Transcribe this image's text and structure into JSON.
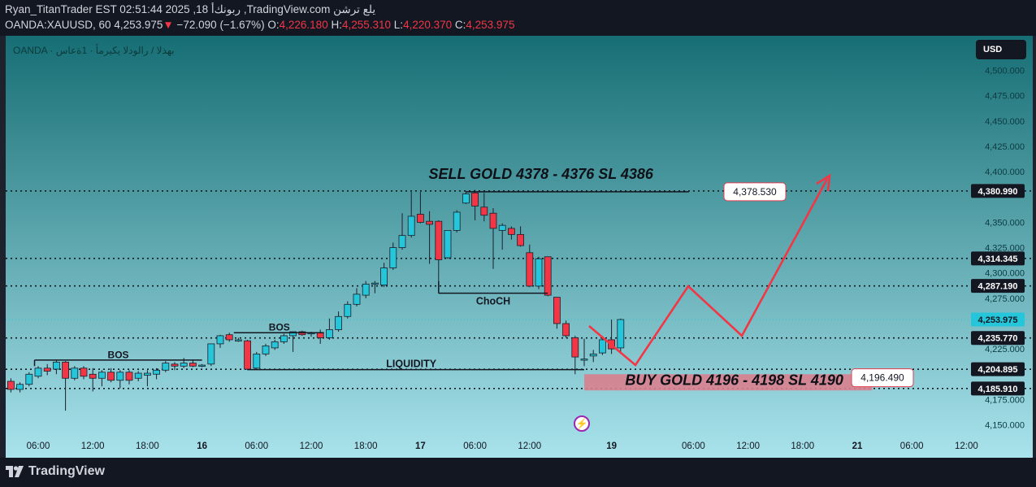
{
  "header": {
    "line1": "Ryan_TitanTrader EST 02:51:44 2025 ,18 ربونك‌أ ,TradingView.com يلع ترشن",
    "symbol": "OANDA:XAUUSD, 60",
    "last": "4,253.975",
    "change_arrow": "▼",
    "change": "−72.090 (−1.67%)",
    "o_label": "O:",
    "o_value": "4,226.180",
    "h_label": "H:",
    "h_value": "4,255.310",
    "l_label": "L:",
    "l_value": "4,220.370",
    "c_label": "C:",
    "c_value": "4,253.975"
  },
  "chart": {
    "symbol_desc": "OANDA · بهذلا / رالودلا يكيرمأ · 1ةعاس",
    "currency_button": "USD",
    "colors": {
      "bg_top": "#166e74",
      "bg_bottom": "#a9e3ec",
      "up": "#26c6da",
      "down": "#f23645",
      "zone": "#d9808e",
      "path": "#f23645"
    },
    "price_axis": [
      {
        "p": 4500,
        "label": "4,500.000"
      },
      {
        "p": 4475,
        "label": "4,475.000"
      },
      {
        "p": 4450,
        "label": "4,450.000"
      },
      {
        "p": 4425,
        "label": "4,425.000"
      },
      {
        "p": 4400,
        "label": "4,400.000"
      },
      {
        "p": 4350,
        "label": "4,350.000"
      },
      {
        "p": 4325,
        "label": "4,325.000"
      },
      {
        "p": 4300,
        "label": "4,300.000"
      },
      {
        "p": 4275,
        "label": "4,275.000"
      },
      {
        "p": 4225,
        "label": "4,225.000"
      },
      {
        "p": 4175,
        "label": "4,175.000"
      },
      {
        "p": 4150,
        "label": "4,150.000"
      }
    ],
    "price_badges": [
      {
        "p": 4380.99,
        "label": "4,380.990",
        "style": "dark"
      },
      {
        "p": 4314.345,
        "label": "4,314.345",
        "style": "dark"
      },
      {
        "p": 4287.19,
        "label": "4,287.190",
        "style": "dark"
      },
      {
        "p": 4253.975,
        "label": "4,253.975",
        "style": "last"
      },
      {
        "p": 4235.77,
        "label": "4,235.770",
        "style": "dark"
      },
      {
        "p": 4204.895,
        "label": "4,204.895",
        "style": "dark"
      },
      {
        "p": 4185.91,
        "label": "4,185.910",
        "style": "dark"
      }
    ],
    "time_axis": [
      {
        "t": 6,
        "label": "06:00"
      },
      {
        "t": 12,
        "label": "12:00"
      },
      {
        "t": 18,
        "label": "18:00"
      },
      {
        "t": 24,
        "label": "16"
      },
      {
        "t": 30,
        "label": "06:00"
      },
      {
        "t": 36,
        "label": "12:00"
      },
      {
        "t": 42,
        "label": "18:00"
      },
      {
        "t": 48,
        "label": "17"
      },
      {
        "t": 54,
        "label": "06:00"
      },
      {
        "t": 60,
        "label": "12:00"
      },
      {
        "t": 69,
        "label": "19"
      },
      {
        "t": 78,
        "label": "06:00"
      },
      {
        "t": 84,
        "label": "12:00"
      },
      {
        "t": 90,
        "label": "18:00"
      },
      {
        "t": 96,
        "label": "21"
      },
      {
        "t": 102,
        "label": "06:00"
      },
      {
        "t": 108,
        "label": "12:00"
      }
    ],
    "candles": [
      {
        "t": 2,
        "o": 4185,
        "h": 4193,
        "l": 4180,
        "c": 4193
      },
      {
        "t": 3,
        "o": 4193,
        "h": 4196,
        "l": 4182,
        "c": 4185
      },
      {
        "t": 4,
        "o": 4185,
        "h": 4192,
        "l": 4182,
        "c": 4190
      },
      {
        "t": 5,
        "o": 4190,
        "h": 4202,
        "l": 4188,
        "c": 4200
      },
      {
        "t": 6,
        "o": 4198,
        "h": 4208,
        "l": 4196,
        "c": 4206
      },
      {
        "t": 7,
        "o": 4206,
        "h": 4210,
        "l": 4199,
        "c": 4203
      },
      {
        "t": 8,
        "o": 4205,
        "h": 4214,
        "l": 4200,
        "c": 4212
      },
      {
        "t": 9,
        "o": 4212,
        "h": 4213,
        "l": 4164,
        "c": 4196
      },
      {
        "t": 10,
        "o": 4196,
        "h": 4208,
        "l": 4194,
        "c": 4206
      },
      {
        "t": 11,
        "o": 4206,
        "h": 4208,
        "l": 4195,
        "c": 4198
      },
      {
        "t": 12,
        "o": 4200,
        "h": 4206,
        "l": 4183,
        "c": 4196
      },
      {
        "t": 13,
        "o": 4196,
        "h": 4204,
        "l": 4188,
        "c": 4202
      },
      {
        "t": 14,
        "o": 4202,
        "h": 4206,
        "l": 4192,
        "c": 4194
      },
      {
        "t": 15,
        "o": 4194,
        "h": 4204,
        "l": 4186,
        "c": 4202
      },
      {
        "t": 16,
        "o": 4202,
        "h": 4204,
        "l": 4190,
        "c": 4194
      },
      {
        "t": 17,
        "o": 4196,
        "h": 4203,
        "l": 4193,
        "c": 4201
      },
      {
        "t": 18,
        "o": 4199,
        "h": 4204,
        "l": 4188,
        "c": 4201
      },
      {
        "t": 19,
        "o": 4200,
        "h": 4206,
        "l": 4195,
        "c": 4204
      },
      {
        "t": 20,
        "o": 4204,
        "h": 4213,
        "l": 4202,
        "c": 4211
      },
      {
        "t": 21,
        "o": 4210,
        "h": 4212,
        "l": 4204,
        "c": 4208
      },
      {
        "t": 22,
        "o": 4208,
        "h": 4216,
        "l": 4206,
        "c": 4211
      },
      {
        "t": 23,
        "o": 4211,
        "h": 4214,
        "l": 4207,
        "c": 4208
      },
      {
        "t": 24,
        "o": 4209,
        "h": 4210,
        "l": 4207,
        "c": 4209
      },
      {
        "t": 25,
        "o": 4210,
        "h": 4230,
        "l": 4208,
        "c": 4230
      },
      {
        "t": 26,
        "o": 4230,
        "h": 4239,
        "l": 4226,
        "c": 4238
      },
      {
        "t": 27,
        "o": 4239,
        "h": 4241,
        "l": 4232,
        "c": 4234
      },
      {
        "t": 28,
        "o": 4234,
        "h": 4236,
        "l": 4232,
        "c": 4234
      },
      {
        "t": 29,
        "o": 4233,
        "h": 4234,
        "l": 4204,
        "c": 4205
      },
      {
        "t": 30,
        "o": 4206,
        "h": 4222,
        "l": 4204,
        "c": 4220
      },
      {
        "t": 31,
        "o": 4220,
        "h": 4230,
        "l": 4218,
        "c": 4228
      },
      {
        "t": 32,
        "o": 4226,
        "h": 4234,
        "l": 4224,
        "c": 4232
      },
      {
        "t": 33,
        "o": 4232,
        "h": 4240,
        "l": 4230,
        "c": 4238
      },
      {
        "t": 34,
        "o": 4238,
        "h": 4242,
        "l": 4222,
        "c": 4242
      },
      {
        "t": 35,
        "o": 4242,
        "h": 4243,
        "l": 4238,
        "c": 4239
      },
      {
        "t": 36,
        "o": 4240,
        "h": 4242,
        "l": 4237,
        "c": 4241
      },
      {
        "t": 37,
        "o": 4241,
        "h": 4244,
        "l": 4230,
        "c": 4236
      },
      {
        "t": 38,
        "o": 4236,
        "h": 4255,
        "l": 4234,
        "c": 4244
      },
      {
        "t": 39,
        "o": 4244,
        "h": 4262,
        "l": 4242,
        "c": 4257
      },
      {
        "t": 40,
        "o": 4257,
        "h": 4272,
        "l": 4255,
        "c": 4269
      },
      {
        "t": 41,
        "o": 4269,
        "h": 4285,
        "l": 4267,
        "c": 4279
      },
      {
        "t": 42,
        "o": 4278,
        "h": 4292,
        "l": 4275,
        "c": 4289
      },
      {
        "t": 43,
        "o": 4289,
        "h": 4292,
        "l": 4280,
        "c": 4290
      },
      {
        "t": 44,
        "o": 4288,
        "h": 4310,
        "l": 4286,
        "c": 4305
      },
      {
        "t": 45,
        "o": 4305,
        "h": 4330,
        "l": 4303,
        "c": 4325
      },
      {
        "t": 46,
        "o": 4325,
        "h": 4359,
        "l": 4323,
        "c": 4337
      },
      {
        "t": 47,
        "o": 4337,
        "h": 4380,
        "l": 4335,
        "c": 4356
      },
      {
        "t": 48,
        "o": 4358,
        "h": 4380,
        "l": 4349,
        "c": 4350
      },
      {
        "t": 49,
        "o": 4351,
        "h": 4361,
        "l": 4309,
        "c": 4348
      },
      {
        "t": 50,
        "o": 4351,
        "h": 4352,
        "l": 4292,
        "c": 4313
      },
      {
        "t": 51,
        "o": 4315,
        "h": 4342,
        "l": 4314,
        "c": 4342
      },
      {
        "t": 52,
        "o": 4342,
        "h": 4362,
        "l": 4340,
        "c": 4360
      },
      {
        "t": 53,
        "o": 4369,
        "h": 4381,
        "l": 4368,
        "c": 4378
      },
      {
        "t": 54,
        "o": 4379,
        "h": 4382,
        "l": 4352,
        "c": 4366
      },
      {
        "t": 55,
        "o": 4365,
        "h": 4379,
        "l": 4351,
        "c": 4357
      },
      {
        "t": 56,
        "o": 4359,
        "h": 4364,
        "l": 4304,
        "c": 4344
      },
      {
        "t": 57,
        "o": 4342,
        "h": 4349,
        "l": 4323,
        "c": 4347
      },
      {
        "t": 58,
        "o": 4344,
        "h": 4346,
        "l": 4333,
        "c": 4338
      },
      {
        "t": 59,
        "o": 4338,
        "h": 4346,
        "l": 4326,
        "c": 4327
      },
      {
        "t": 60,
        "o": 4320,
        "h": 4328,
        "l": 4286,
        "c": 4287
      },
      {
        "t": 61,
        "o": 4287,
        "h": 4316,
        "l": 4284,
        "c": 4314
      },
      {
        "t": 62,
        "o": 4316,
        "h": 4316,
        "l": 4277,
        "c": 4278
      },
      {
        "t": 63,
        "o": 4276,
        "h": 4276,
        "l": 4245,
        "c": 4250
      },
      {
        "t": 64,
        "o": 4250,
        "h": 4253,
        "l": 4236,
        "c": 4238
      },
      {
        "t": 65,
        "o": 4236,
        "h": 4238,
        "l": 4200,
        "c": 4217
      },
      {
        "t": 66,
        "o": 4215,
        "h": 4235,
        "l": 4208,
        "c": 4215
      },
      {
        "t": 67,
        "o": 4218,
        "h": 4224,
        "l": 4212,
        "c": 4220
      },
      {
        "t": 68,
        "o": 4221,
        "h": 4237,
        "l": 4219,
        "c": 4234
      },
      {
        "t": 69,
        "o": 4234,
        "h": 4254,
        "l": 4220,
        "c": 4225
      },
      {
        "t": 70,
        "o": 4226,
        "h": 4255,
        "l": 4220,
        "c": 4254
      }
    ],
    "annotations": {
      "sell_text": "SELL GOLD 4378 - 4376 SL 4386",
      "sell_tag": "4,378.530",
      "buy_text": "BUY GOLD 4196 - 4198 SL 4190",
      "buy_tag": "4,196.490",
      "bos1": "BOS",
      "bos2": "BOS",
      "choch": "ChoCH",
      "liquidity": "LIQUIDITY"
    }
  }
}
